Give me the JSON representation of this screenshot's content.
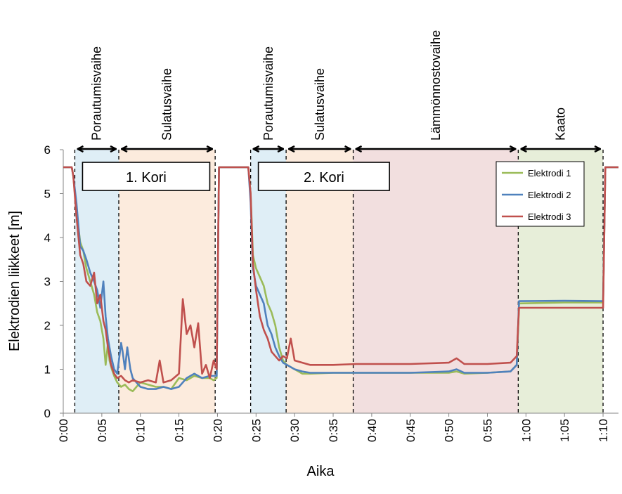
{
  "chart_data": {
    "type": "line",
    "xlabel": "Aika",
    "ylabel": "Elektrodien liikkeet [m]",
    "xlim": [
      0,
      72
    ],
    "ylim": [
      0,
      6
    ],
    "yticks": [
      0,
      1,
      2,
      3,
      4,
      5,
      6
    ],
    "xticks": [
      {
        "v": 0,
        "label": "0:00"
      },
      {
        "v": 5,
        "label": "0:05"
      },
      {
        "v": 10,
        "label": "0:10"
      },
      {
        "v": 15,
        "label": "0:15"
      },
      {
        "v": 20,
        "label": "0:20"
      },
      {
        "v": 25,
        "label": "0:25"
      },
      {
        "v": 30,
        "label": "0:30"
      },
      {
        "v": 35,
        "label": "0:35"
      },
      {
        "v": 40,
        "label": "0:40"
      },
      {
        "v": 45,
        "label": "0:45"
      },
      {
        "v": 50,
        "label": "0:50"
      },
      {
        "v": 55,
        "label": "0:55"
      },
      {
        "v": 60,
        "label": "1:00"
      },
      {
        "v": 65,
        "label": "1:05"
      },
      {
        "v": 70,
        "label": "1:10"
      }
    ],
    "phases": [
      {
        "label": "Porautumisvaihe",
        "start": 1.5,
        "end": 7.2,
        "color": "#dfeef6"
      },
      {
        "label": "Sulatusvaihe",
        "start": 7.2,
        "end": 19.7,
        "color": "#fcebdd"
      },
      {
        "label": "Porautumisvaihe",
        "start": 24.3,
        "end": 28.9,
        "color": "#dfeef6"
      },
      {
        "label": "Sulatusvaihe",
        "start": 28.9,
        "end": 37.6,
        "color": "#fcebdd"
      },
      {
        "label": "Lämmönnostovaihe",
        "start": 37.6,
        "end": 59.0,
        "color": "#f2dfdf"
      },
      {
        "label": "Kaato",
        "start": 59.0,
        "end": 70.0,
        "color": "#e7eed9"
      }
    ],
    "boxes": [
      {
        "label": "1. Kori",
        "start": 2.5,
        "end": 19.0
      },
      {
        "label": "2. Kori",
        "start": 25.3,
        "end": 42.3
      }
    ],
    "series": [
      {
        "name": "Elektrodi 1",
        "color": "#9bbb59",
        "x": [
          0,
          1.1,
          1.3,
          1.7,
          2.2,
          2.6,
          3.0,
          3.5,
          4.0,
          4.4,
          4.8,
          5.2,
          5.5,
          5.8,
          6.0,
          6.3,
          6.6,
          7.0,
          7.5,
          8.0,
          8.5,
          9.0,
          9.5,
          10.0,
          11.0,
          12.0,
          13.0,
          14.0,
          15.0,
          16.0,
          17.0,
          18.0,
          19.0,
          19.5,
          19.9,
          20.2,
          24.0,
          24.3,
          24.6,
          25.0,
          25.5,
          26.0,
          26.5,
          27.0,
          27.5,
          28.0,
          28.5,
          29.0,
          30.0,
          31.0,
          32.0,
          35.0,
          38.0,
          45.0,
          50.0,
          51.0,
          52.0,
          55.0,
          58.0,
          58.8,
          59.1,
          65.0,
          69.8,
          70.0,
          70.3,
          72.0
        ],
        "values": [
          5.6,
          5.6,
          5.4,
          4.6,
          3.9,
          3.7,
          3.3,
          3.0,
          2.7,
          2.3,
          2.1,
          1.7,
          1.1,
          1.6,
          1.2,
          1.0,
          0.85,
          0.7,
          0.6,
          0.65,
          0.55,
          0.5,
          0.6,
          0.7,
          0.65,
          0.6,
          0.6,
          0.55,
          0.8,
          0.75,
          0.85,
          0.8,
          0.8,
          0.75,
          0.8,
          5.6,
          5.6,
          5.0,
          3.6,
          3.3,
          3.1,
          2.9,
          2.5,
          2.3,
          2.0,
          1.5,
          1.2,
          1.1,
          1.0,
          0.9,
          0.9,
          0.92,
          0.92,
          0.92,
          0.92,
          0.95,
          0.9,
          0.92,
          0.95,
          1.1,
          2.5,
          2.52,
          2.52,
          2.52,
          5.6,
          5.6
        ]
      },
      {
        "name": "Elektrodi 2",
        "color": "#4f81bd",
        "x": [
          0,
          1.1,
          1.3,
          1.7,
          2.2,
          2.6,
          3.0,
          3.5,
          4.0,
          4.4,
          4.8,
          5.2,
          5.5,
          5.8,
          6.2,
          6.6,
          7.0,
          7.5,
          7.7,
          8.0,
          8.3,
          8.7,
          9.0,
          9.5,
          10.0,
          11.0,
          12.0,
          13.0,
          14.0,
          15.0,
          16.0,
          17.0,
          18.0,
          19.0,
          19.9,
          20.2,
          24.0,
          24.3,
          24.6,
          25.0,
          25.5,
          26.0,
          26.5,
          27.0,
          27.5,
          28.0,
          28.5,
          29.0,
          30.0,
          31.0,
          32.0,
          35.0,
          38.0,
          45.0,
          50.0,
          51.0,
          52.0,
          55.0,
          58.0,
          58.8,
          59.1,
          65.0,
          69.8,
          70.0,
          70.3,
          72.0
        ],
        "values": [
          5.6,
          5.6,
          5.4,
          4.8,
          3.8,
          3.7,
          3.5,
          3.2,
          3.0,
          2.8,
          2.4,
          3.0,
          2.2,
          1.7,
          1.3,
          1.0,
          0.9,
          1.6,
          1.4,
          1.0,
          1.5,
          1.0,
          0.8,
          0.7,
          0.6,
          0.55,
          0.55,
          0.6,
          0.55,
          0.6,
          0.8,
          0.9,
          0.8,
          0.85,
          0.85,
          5.6,
          5.6,
          4.8,
          3.3,
          2.9,
          2.7,
          2.5,
          2.0,
          1.8,
          1.5,
          1.3,
          1.15,
          1.1,
          1.0,
          0.95,
          0.92,
          0.92,
          0.92,
          0.92,
          0.95,
          1.0,
          0.92,
          0.92,
          0.95,
          1.1,
          2.55,
          2.56,
          2.55,
          2.55,
          5.6,
          5.6
        ]
      },
      {
        "name": "Elektrodi 3",
        "color": "#c0504d",
        "x": [
          0,
          1.1,
          1.3,
          1.7,
          2.2,
          2.6,
          3.0,
          3.5,
          4.0,
          4.4,
          4.8,
          5.2,
          5.5,
          5.8,
          6.2,
          6.6,
          7.0,
          7.5,
          8.0,
          8.5,
          9.0,
          10.0,
          11.0,
          12.0,
          12.5,
          13.0,
          14.0,
          15.0,
          15.5,
          16.0,
          16.5,
          17.0,
          17.5,
          18.0,
          18.5,
          19.0,
          19.5,
          19.9,
          20.2,
          24.0,
          24.3,
          24.6,
          25.0,
          25.5,
          26.0,
          26.5,
          27.0,
          27.5,
          28.0,
          28.5,
          29.0,
          29.5,
          30.0,
          31.0,
          32.0,
          35.0,
          38.0,
          45.0,
          50.0,
          51.0,
          52.0,
          55.0,
          58.0,
          58.8,
          59.1,
          65.0,
          69.8,
          70.0,
          70.3,
          72.0
        ],
        "values": [
          5.6,
          5.6,
          5.4,
          4.5,
          3.6,
          3.4,
          3.0,
          2.9,
          3.2,
          2.5,
          2.7,
          2.1,
          1.9,
          1.5,
          1.1,
          0.9,
          0.8,
          0.85,
          0.75,
          0.7,
          0.75,
          0.7,
          0.75,
          0.7,
          1.2,
          0.7,
          0.75,
          0.9,
          2.6,
          1.8,
          2.0,
          1.5,
          2.05,
          0.9,
          1.1,
          0.8,
          1.2,
          1.0,
          5.6,
          5.6,
          5.0,
          3.4,
          2.8,
          2.2,
          1.9,
          1.7,
          1.4,
          1.3,
          1.2,
          1.3,
          1.25,
          1.7,
          1.2,
          1.15,
          1.1,
          1.1,
          1.12,
          1.12,
          1.15,
          1.25,
          1.12,
          1.12,
          1.15,
          1.3,
          2.4,
          2.4,
          2.4,
          2.4,
          5.6,
          5.6
        ]
      }
    ]
  }
}
